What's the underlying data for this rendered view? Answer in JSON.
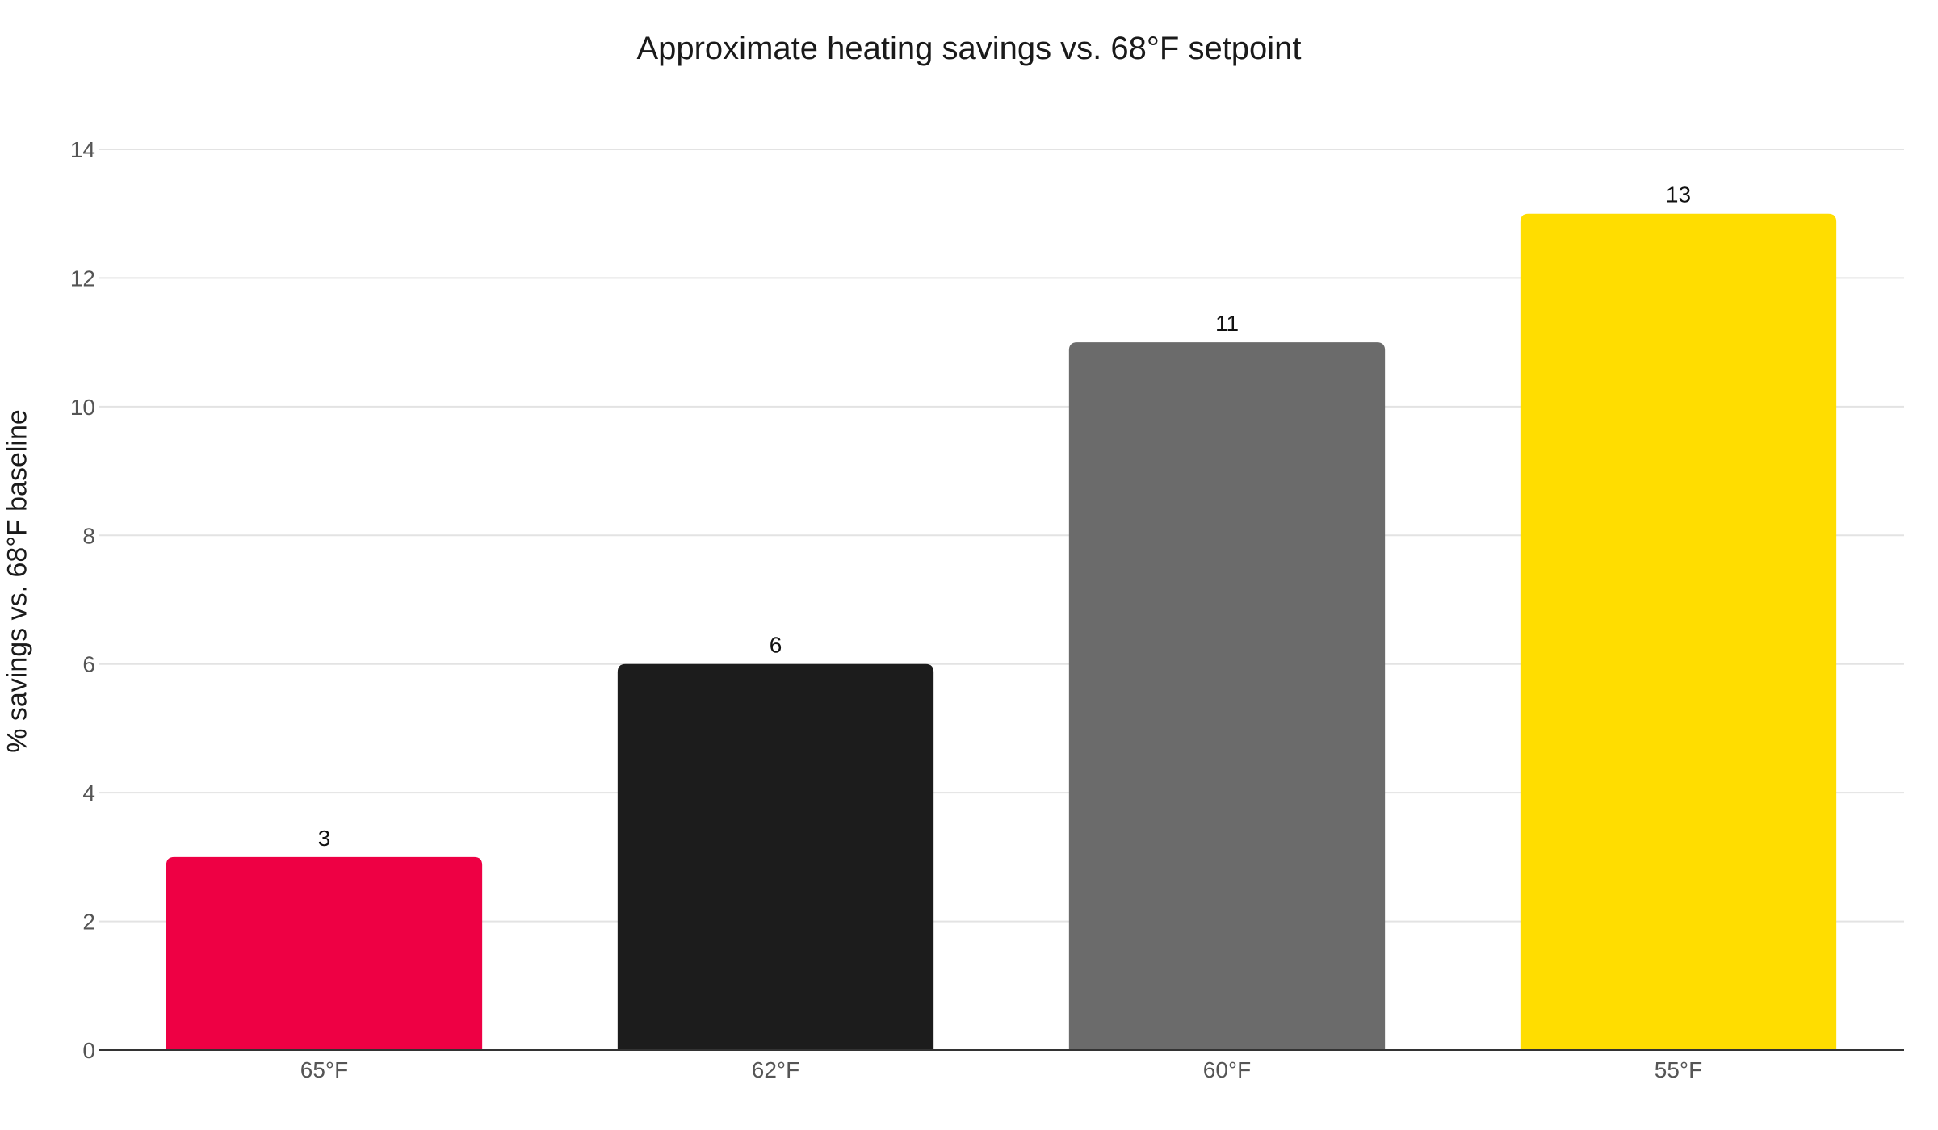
{
  "chart_data": {
    "type": "bar",
    "title": "Approximate heating savings vs. 68°F setpoint",
    "xlabel": "",
    "ylabel": "% savings vs. 68°F baseline",
    "categories": [
      "65°F",
      "62°F",
      "60°F",
      "55°F"
    ],
    "values": [
      3,
      6,
      11,
      13
    ],
    "data_labels": [
      "3",
      "6",
      "11",
      "13"
    ],
    "bar_colors": [
      "#EE0044",
      "#1C1C1C",
      "#6B6B6B",
      "#FFDD00"
    ],
    "ylim": [
      0,
      14
    ],
    "yticks": [
      0,
      2,
      4,
      6,
      8,
      10,
      12,
      14
    ],
    "grid": true,
    "legend": "none"
  }
}
